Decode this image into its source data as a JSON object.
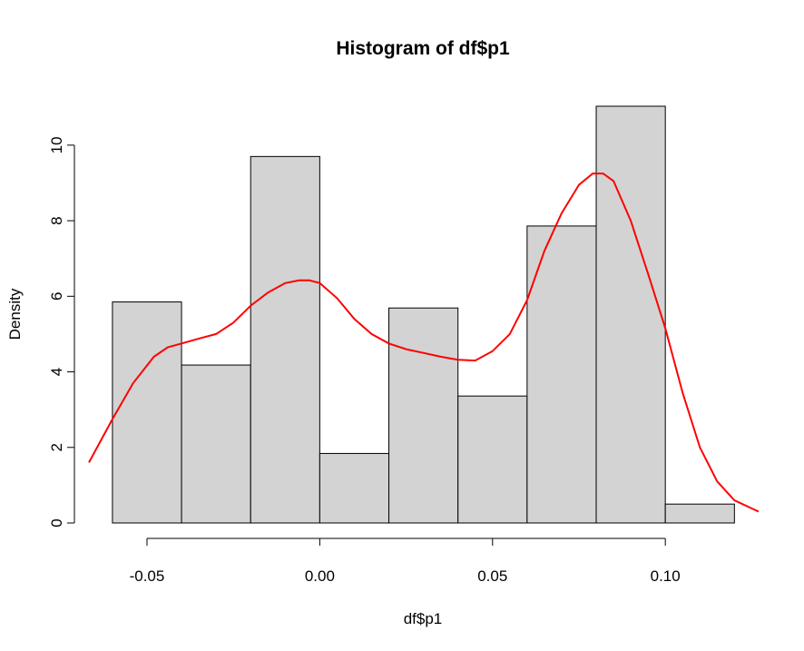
{
  "chart_data": {
    "type": "bar",
    "title": "Histogram of df$p1",
    "xlabel": "df$p1",
    "ylabel": "Density",
    "bin_edges": [
      -0.06,
      -0.04,
      -0.02,
      0.0,
      0.02,
      0.04,
      0.06,
      0.08,
      0.1,
      0.12
    ],
    "values": [
      5.85,
      4.18,
      9.7,
      1.84,
      5.69,
      3.36,
      7.86,
      11.03,
      0.5
    ],
    "x_ticks": [
      -0.05,
      0.0,
      0.05,
      0.1
    ],
    "x_tick_labels": [
      "-0.05",
      "0.00",
      "0.05",
      "0.10"
    ],
    "y_ticks": [
      0,
      2,
      4,
      6,
      8,
      10
    ],
    "y_tick_labels": [
      "0",
      "2",
      "4",
      "6",
      "8",
      "10"
    ],
    "xlim": [
      -0.0668,
      0.127
    ],
    "ylim": [
      0,
      11.03
    ],
    "bar_color": "#d3d3d3",
    "grid": false,
    "series": [
      {
        "type": "line",
        "color": "#ff0000",
        "x": [
          -0.0668,
          -0.06,
          -0.054,
          -0.048,
          -0.044,
          -0.04,
          -0.035,
          -0.03,
          -0.025,
          -0.02,
          -0.015,
          -0.01,
          -0.006,
          -0.003,
          0.0,
          0.005,
          0.01,
          0.015,
          0.02,
          0.025,
          0.03,
          0.035,
          0.04,
          0.045,
          0.05,
          0.055,
          0.06,
          0.065,
          0.07,
          0.075,
          0.079,
          0.082,
          0.085,
          0.09,
          0.095,
          0.1,
          0.105,
          0.11,
          0.115,
          0.12,
          0.127
        ],
        "y": [
          1.6,
          2.75,
          3.7,
          4.4,
          4.65,
          4.75,
          4.88,
          5.0,
          5.3,
          5.75,
          6.1,
          6.35,
          6.42,
          6.42,
          6.35,
          5.95,
          5.4,
          5.0,
          4.75,
          4.6,
          4.5,
          4.4,
          4.32,
          4.3,
          4.55,
          5.0,
          5.9,
          7.2,
          8.2,
          8.95,
          9.25,
          9.25,
          9.05,
          8.0,
          6.6,
          5.15,
          3.45,
          2.0,
          1.1,
          0.6,
          0.3
        ]
      }
    ]
  }
}
